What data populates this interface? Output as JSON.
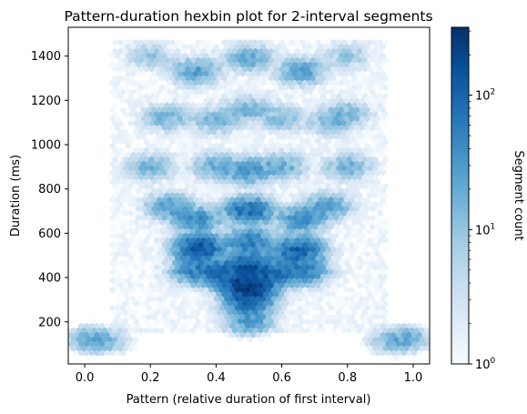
{
  "chart_data": {
    "type": "heatmap",
    "subtype": "hexbin",
    "title": "Pattern-duration hexbin plot for 2-interval segments",
    "xlabel": "Pattern (relative duration of first interval)",
    "ylabel": "Duration (ms)",
    "xlim": [
      -0.05,
      1.05
    ],
    "ylim": [
      10,
      1530
    ],
    "xticks": [
      {
        "value": 0.0,
        "label": "0.0"
      },
      {
        "value": 0.2,
        "label": "0.2"
      },
      {
        "value": 0.4,
        "label": "0.4"
      },
      {
        "value": 0.6,
        "label": "0.6"
      },
      {
        "value": 0.8,
        "label": "0.8"
      },
      {
        "value": 1.0,
        "label": "1.0"
      }
    ],
    "yticks": [
      {
        "value": 200,
        "label": "200"
      },
      {
        "value": 400,
        "label": "400"
      },
      {
        "value": 600,
        "label": "600"
      },
      {
        "value": 800,
        "label": "800"
      },
      {
        "value": 1000,
        "label": "1000"
      },
      {
        "value": 1200,
        "label": "1200"
      },
      {
        "value": 1400,
        "label": "1400"
      }
    ],
    "grid": false,
    "colorbar": {
      "label": "Segment count",
      "scale": "log",
      "range": [
        1,
        320
      ],
      "colormap": "Blues",
      "ticks": [
        {
          "value": 1,
          "base": "10",
          "exp": "0"
        },
        {
          "value": 10,
          "base": "10",
          "exp": "1"
        },
        {
          "value": 100,
          "base": "10",
          "exp": "2"
        }
      ]
    },
    "clusters": [
      {
        "x": 0.5,
        "y": 360,
        "count": 300
      },
      {
        "x": 0.5,
        "y": 450,
        "count": 130
      },
      {
        "x": 0.5,
        "y": 290,
        "count": 90
      },
      {
        "x": 0.35,
        "y": 530,
        "count": 130
      },
      {
        "x": 0.65,
        "y": 520,
        "count": 110
      },
      {
        "x": 0.42,
        "y": 420,
        "count": 70
      },
      {
        "x": 0.58,
        "y": 420,
        "count": 70
      },
      {
        "x": 0.34,
        "y": 430,
        "count": 55
      },
      {
        "x": 0.67,
        "y": 430,
        "count": 50
      },
      {
        "x": 0.5,
        "y": 560,
        "count": 60
      },
      {
        "x": 0.5,
        "y": 700,
        "count": 80
      },
      {
        "x": 0.34,
        "y": 660,
        "count": 40
      },
      {
        "x": 0.66,
        "y": 660,
        "count": 40
      },
      {
        "x": 0.26,
        "y": 720,
        "count": 25
      },
      {
        "x": 0.74,
        "y": 720,
        "count": 25
      },
      {
        "x": 0.5,
        "y": 880,
        "count": 30
      },
      {
        "x": 0.2,
        "y": 900,
        "count": 15
      },
      {
        "x": 0.8,
        "y": 900,
        "count": 15
      },
      {
        "x": 0.4,
        "y": 900,
        "count": 18
      },
      {
        "x": 0.6,
        "y": 900,
        "count": 18
      },
      {
        "x": 0.25,
        "y": 1120,
        "count": 15
      },
      {
        "x": 0.4,
        "y": 1110,
        "count": 15
      },
      {
        "x": 0.5,
        "y": 1160,
        "count": 15
      },
      {
        "x": 0.6,
        "y": 1120,
        "count": 12
      },
      {
        "x": 0.75,
        "y": 1100,
        "count": 12
      },
      {
        "x": 0.8,
        "y": 1140,
        "count": 12
      },
      {
        "x": 0.34,
        "y": 1330,
        "count": 25
      },
      {
        "x": 0.5,
        "y": 1390,
        "count": 20
      },
      {
        "x": 0.66,
        "y": 1330,
        "count": 25
      },
      {
        "x": 0.2,
        "y": 1400,
        "count": 8
      },
      {
        "x": 0.8,
        "y": 1400,
        "count": 8
      },
      {
        "x": 0.02,
        "y": 120,
        "count": 20
      },
      {
        "x": 0.08,
        "y": 110,
        "count": 8
      },
      {
        "x": 0.98,
        "y": 120,
        "count": 20
      },
      {
        "x": 0.92,
        "y": 110,
        "count": 8
      },
      {
        "x": 0.5,
        "y": 200,
        "count": 30
      }
    ]
  }
}
